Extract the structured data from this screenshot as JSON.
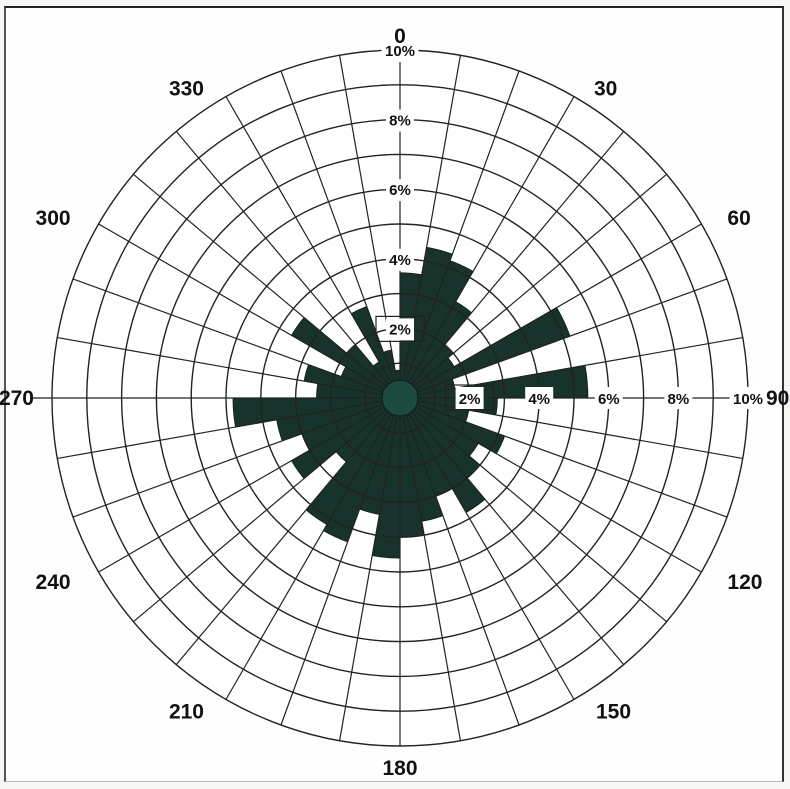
{
  "chart_data": {
    "type": "rose",
    "sector_width_deg": 10,
    "radial_unit": "%",
    "rlim": [
      0,
      10
    ],
    "angle_labels": [
      "0",
      "30",
      "60",
      "90",
      "120",
      "150",
      "180",
      "210",
      "240",
      "270",
      "300",
      "330"
    ],
    "north_ring_labels": [
      "2%",
      "4%",
      "6%",
      "8%",
      "10%"
    ],
    "east_ring_labels": [
      "2%",
      "4%",
      "6%",
      "8%",
      "10%"
    ],
    "sectors": [
      {
        "angle": 5,
        "value": 3.6
      },
      {
        "angle": 15,
        "value": 4.4
      },
      {
        "angle": 25,
        "value": 4.2
      },
      {
        "angle": 35,
        "value": 3.2
      },
      {
        "angle": 45,
        "value": 2.0
      },
      {
        "angle": 55,
        "value": 1.8
      },
      {
        "angle": 65,
        "value": 5.2
      },
      {
        "angle": 75,
        "value": 1.6
      },
      {
        "angle": 85,
        "value": 5.4
      },
      {
        "angle": 95,
        "value": 2.8
      },
      {
        "angle": 105,
        "value": 2.0
      },
      {
        "angle": 115,
        "value": 3.2
      },
      {
        "angle": 125,
        "value": 2.6
      },
      {
        "angle": 135,
        "value": 3.0
      },
      {
        "angle": 145,
        "value": 3.8
      },
      {
        "angle": 155,
        "value": 3.0
      },
      {
        "angle": 165,
        "value": 3.6
      },
      {
        "angle": 175,
        "value": 4.0
      },
      {
        "angle": 185,
        "value": 4.6
      },
      {
        "angle": 195,
        "value": 3.4
      },
      {
        "angle": 205,
        "value": 4.4
      },
      {
        "angle": 215,
        "value": 4.2
      },
      {
        "angle": 225,
        "value": 2.4
      },
      {
        "angle": 235,
        "value": 3.6
      },
      {
        "angle": 245,
        "value": 3.0
      },
      {
        "angle": 255,
        "value": 3.6
      },
      {
        "angle": 265,
        "value": 4.8
      },
      {
        "angle": 275,
        "value": 2.4
      },
      {
        "angle": 285,
        "value": 2.8
      },
      {
        "angle": 295,
        "value": 1.8
      },
      {
        "angle": 305,
        "value": 3.6
      },
      {
        "angle": 315,
        "value": 2.0
      },
      {
        "angle": 325,
        "value": 1.2
      },
      {
        "angle": 335,
        "value": 2.8
      },
      {
        "angle": 345,
        "value": 1.4
      },
      {
        "angle": 355,
        "value": 0.8
      }
    ],
    "grid": true,
    "colors": {
      "fill": "#17332c",
      "grid": "#222222",
      "center": "#1d4a3f"
    }
  }
}
